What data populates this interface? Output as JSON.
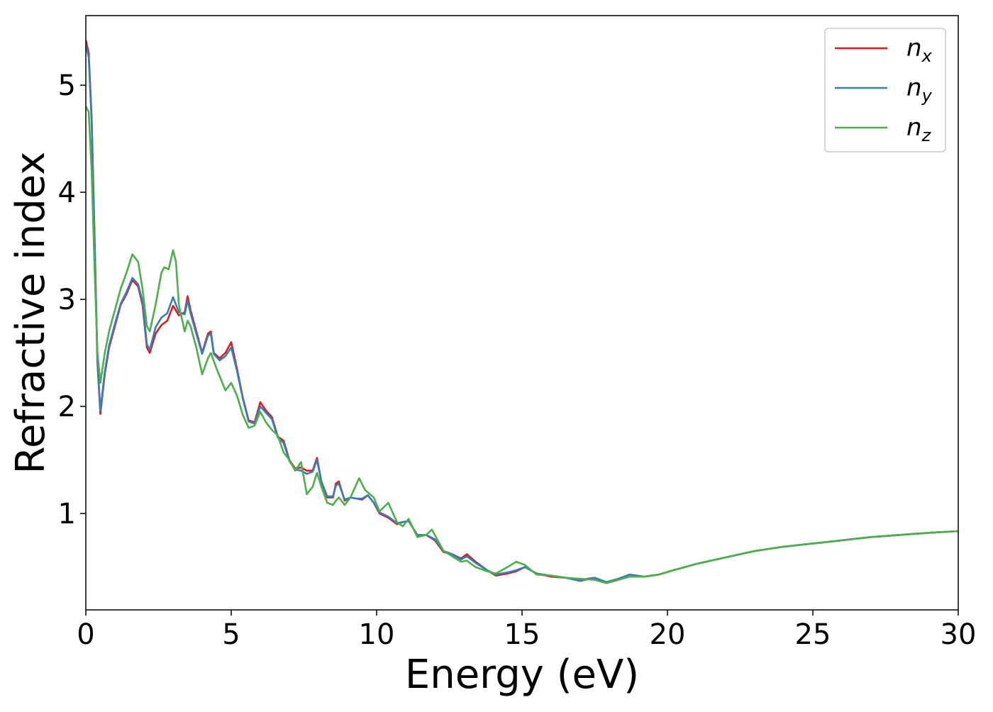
{
  "chart_data": {
    "type": "line",
    "title": "",
    "xlabel": "Energy (eV)",
    "ylabel": "Refractive index",
    "xlim": [
      0,
      30
    ],
    "ylim": [
      0.1,
      5.65
    ],
    "xticks": [
      0,
      5,
      10,
      15,
      20,
      25,
      30
    ],
    "yticks": [
      1,
      2,
      3,
      4,
      5
    ],
    "grid": false,
    "legend_position": "top-right",
    "series": [
      {
        "name": "n_x",
        "label_base": "n",
        "label_sub": "x",
        "color": "#e41a1c",
        "points": [
          [
            0,
            5.42
          ],
          [
            0.1,
            5.3
          ],
          [
            0.2,
            4.7
          ],
          [
            0.3,
            3.6
          ],
          [
            0.4,
            2.4
          ],
          [
            0.5,
            1.93
          ],
          [
            0.65,
            2.3
          ],
          [
            0.8,
            2.55
          ],
          [
            1,
            2.75
          ],
          [
            1.2,
            2.95
          ],
          [
            1.4,
            3.05
          ],
          [
            1.6,
            3.18
          ],
          [
            1.8,
            3.12
          ],
          [
            1.95,
            2.95
          ],
          [
            2.1,
            2.55
          ],
          [
            2.2,
            2.5
          ],
          [
            2.4,
            2.68
          ],
          [
            2.6,
            2.76
          ],
          [
            2.8,
            2.8
          ],
          [
            3,
            2.94
          ],
          [
            3.2,
            2.85
          ],
          [
            3.4,
            2.88
          ],
          [
            3.5,
            3.03
          ],
          [
            3.6,
            2.9
          ],
          [
            3.8,
            2.7
          ],
          [
            4,
            2.5
          ],
          [
            4.2,
            2.68
          ],
          [
            4.3,
            2.7
          ],
          [
            4.4,
            2.5
          ],
          [
            4.6,
            2.45
          ],
          [
            4.8,
            2.5
          ],
          [
            5,
            2.6
          ],
          [
            5.2,
            2.35
          ],
          [
            5.4,
            2.08
          ],
          [
            5.6,
            1.87
          ],
          [
            5.8,
            1.85
          ],
          [
            6,
            2.04
          ],
          [
            6.2,
            1.96
          ],
          [
            6.4,
            1.9
          ],
          [
            6.6,
            1.72
          ],
          [
            6.8,
            1.68
          ],
          [
            7,
            1.5
          ],
          [
            7.2,
            1.42
          ],
          [
            7.4,
            1.43
          ],
          [
            7.6,
            1.4
          ],
          [
            7.8,
            1.4
          ],
          [
            7.95,
            1.52
          ],
          [
            8.1,
            1.3
          ],
          [
            8.3,
            1.15
          ],
          [
            8.5,
            1.15
          ],
          [
            8.6,
            1.28
          ],
          [
            8.7,
            1.3
          ],
          [
            8.9,
            1.12
          ],
          [
            9.1,
            1.15
          ],
          [
            9.3,
            1.14
          ],
          [
            9.5,
            1.13
          ],
          [
            9.7,
            1.17
          ],
          [
            9.9,
            1.1
          ],
          [
            10.1,
            1.0
          ],
          [
            10.4,
            0.96
          ],
          [
            10.7,
            0.9
          ],
          [
            10.9,
            0.92
          ],
          [
            11.1,
            0.93
          ],
          [
            11.4,
            0.8
          ],
          [
            11.7,
            0.8
          ],
          [
            12,
            0.75
          ],
          [
            12.3,
            0.64
          ],
          [
            12.6,
            0.62
          ],
          [
            12.9,
            0.58
          ],
          [
            13.1,
            0.62
          ],
          [
            13.4,
            0.55
          ],
          [
            13.8,
            0.47
          ],
          [
            14.1,
            0.42
          ],
          [
            14.5,
            0.44
          ],
          [
            14.8,
            0.46
          ],
          [
            15.1,
            0.5
          ],
          [
            15.5,
            0.44
          ],
          [
            16,
            0.41
          ],
          [
            16.5,
            0.4
          ],
          [
            17,
            0.38
          ],
          [
            17.5,
            0.4
          ],
          [
            17.9,
            0.35
          ],
          [
            18.3,
            0.38
          ],
          [
            18.7,
            0.43
          ],
          [
            19.2,
            0.41
          ],
          [
            19.7,
            0.43
          ],
          [
            20.2,
            0.47
          ],
          [
            21,
            0.53
          ],
          [
            22,
            0.59
          ],
          [
            23,
            0.65
          ],
          [
            24,
            0.69
          ],
          [
            25,
            0.72
          ],
          [
            26,
            0.75
          ],
          [
            27,
            0.78
          ],
          [
            28,
            0.8
          ],
          [
            29,
            0.82
          ],
          [
            30,
            0.835
          ]
        ]
      },
      {
        "name": "n_y",
        "label_base": "n",
        "label_sub": "y",
        "color": "#377eb8",
        "points": [
          [
            0,
            5.38
          ],
          [
            0.1,
            5.26
          ],
          [
            0.2,
            4.66
          ],
          [
            0.3,
            3.57
          ],
          [
            0.4,
            2.42
          ],
          [
            0.5,
            1.96
          ],
          [
            0.65,
            2.32
          ],
          [
            0.8,
            2.57
          ],
          [
            1,
            2.77
          ],
          [
            1.2,
            2.96
          ],
          [
            1.4,
            3.07
          ],
          [
            1.6,
            3.2
          ],
          [
            1.8,
            3.14
          ],
          [
            1.95,
            2.98
          ],
          [
            2.1,
            2.58
          ],
          [
            2.2,
            2.53
          ],
          [
            2.4,
            2.74
          ],
          [
            2.6,
            2.83
          ],
          [
            2.8,
            2.87
          ],
          [
            3,
            3.02
          ],
          [
            3.2,
            2.88
          ],
          [
            3.4,
            2.86
          ],
          [
            3.5,
            2.99
          ],
          [
            3.6,
            2.87
          ],
          [
            3.8,
            2.68
          ],
          [
            4,
            2.49
          ],
          [
            4.2,
            2.66
          ],
          [
            4.3,
            2.68
          ],
          [
            4.4,
            2.49
          ],
          [
            4.6,
            2.43
          ],
          [
            4.8,
            2.47
          ],
          [
            5,
            2.55
          ],
          [
            5.2,
            2.33
          ],
          [
            5.4,
            2.07
          ],
          [
            5.6,
            1.86
          ],
          [
            5.8,
            1.84
          ],
          [
            6,
            2.0
          ],
          [
            6.2,
            1.94
          ],
          [
            6.4,
            1.88
          ],
          [
            6.6,
            1.71
          ],
          [
            6.8,
            1.66
          ],
          [
            7,
            1.49
          ],
          [
            7.2,
            1.41
          ],
          [
            7.4,
            1.4
          ],
          [
            7.6,
            1.37
          ],
          [
            7.8,
            1.39
          ],
          [
            7.95,
            1.5
          ],
          [
            8.1,
            1.3
          ],
          [
            8.3,
            1.16
          ],
          [
            8.5,
            1.16
          ],
          [
            8.6,
            1.26
          ],
          [
            8.7,
            1.28
          ],
          [
            8.9,
            1.13
          ],
          [
            9.1,
            1.15
          ],
          [
            9.3,
            1.14
          ],
          [
            9.5,
            1.14
          ],
          [
            9.7,
            1.17
          ],
          [
            9.9,
            1.1
          ],
          [
            10.1,
            1.01
          ],
          [
            10.4,
            0.97
          ],
          [
            10.7,
            0.91
          ],
          [
            10.9,
            0.92
          ],
          [
            11.1,
            0.93
          ],
          [
            11.4,
            0.8
          ],
          [
            11.7,
            0.8
          ],
          [
            12,
            0.76
          ],
          [
            12.3,
            0.65
          ],
          [
            12.6,
            0.62
          ],
          [
            12.9,
            0.57
          ],
          [
            13.1,
            0.6
          ],
          [
            13.4,
            0.54
          ],
          [
            13.8,
            0.47
          ],
          [
            14.1,
            0.43
          ],
          [
            14.5,
            0.45
          ],
          [
            14.8,
            0.47
          ],
          [
            15.1,
            0.5
          ],
          [
            15.5,
            0.44
          ],
          [
            16,
            0.42
          ],
          [
            16.5,
            0.4
          ],
          [
            17,
            0.37
          ],
          [
            17.5,
            0.4
          ],
          [
            17.9,
            0.36
          ],
          [
            18.3,
            0.39
          ],
          [
            18.7,
            0.43
          ],
          [
            19.2,
            0.41
          ],
          [
            19.7,
            0.43
          ],
          [
            20.2,
            0.47
          ],
          [
            21,
            0.53
          ],
          [
            22,
            0.59
          ],
          [
            23,
            0.65
          ],
          [
            24,
            0.69
          ],
          [
            25,
            0.72
          ],
          [
            26,
            0.75
          ],
          [
            27,
            0.78
          ],
          [
            28,
            0.8
          ],
          [
            29,
            0.82
          ],
          [
            30,
            0.835
          ]
        ]
      },
      {
        "name": "n_z",
        "label_base": "n",
        "label_sub": "z",
        "color": "#4daf4a",
        "points": [
          [
            0,
            4.8
          ],
          [
            0.1,
            4.75
          ],
          [
            0.2,
            4.2
          ],
          [
            0.3,
            3.3
          ],
          [
            0.4,
            2.5
          ],
          [
            0.5,
            2.22
          ],
          [
            0.65,
            2.5
          ],
          [
            0.8,
            2.7
          ],
          [
            1,
            2.9
          ],
          [
            1.2,
            3.1
          ],
          [
            1.4,
            3.25
          ],
          [
            1.6,
            3.42
          ],
          [
            1.8,
            3.35
          ],
          [
            1.95,
            3.1
          ],
          [
            2.1,
            2.75
          ],
          [
            2.2,
            2.7
          ],
          [
            2.4,
            2.95
          ],
          [
            2.6,
            3.25
          ],
          [
            2.7,
            3.3
          ],
          [
            2.85,
            3.28
          ],
          [
            3,
            3.46
          ],
          [
            3.1,
            3.35
          ],
          [
            3.2,
            2.95
          ],
          [
            3.4,
            2.7
          ],
          [
            3.5,
            2.8
          ],
          [
            3.6,
            2.75
          ],
          [
            3.8,
            2.55
          ],
          [
            4,
            2.3
          ],
          [
            4.2,
            2.45
          ],
          [
            4.3,
            2.5
          ],
          [
            4.5,
            2.35
          ],
          [
            4.8,
            2.15
          ],
          [
            5,
            2.22
          ],
          [
            5.2,
            2.1
          ],
          [
            5.4,
            1.92
          ],
          [
            5.6,
            1.8
          ],
          [
            5.8,
            1.82
          ],
          [
            6,
            1.95
          ],
          [
            6.2,
            1.85
          ],
          [
            6.4,
            1.78
          ],
          [
            6.6,
            1.73
          ],
          [
            6.8,
            1.57
          ],
          [
            7,
            1.5
          ],
          [
            7.2,
            1.4
          ],
          [
            7.4,
            1.48
          ],
          [
            7.6,
            1.18
          ],
          [
            7.8,
            1.25
          ],
          [
            7.95,
            1.38
          ],
          [
            8.1,
            1.25
          ],
          [
            8.3,
            1.1
          ],
          [
            8.5,
            1.08
          ],
          [
            8.6,
            1.12
          ],
          [
            8.7,
            1.15
          ],
          [
            8.9,
            1.08
          ],
          [
            9.1,
            1.15
          ],
          [
            9.4,
            1.33
          ],
          [
            9.6,
            1.22
          ],
          [
            9.9,
            1.15
          ],
          [
            10.1,
            1.02
          ],
          [
            10.4,
            1.1
          ],
          [
            10.7,
            0.92
          ],
          [
            10.9,
            0.88
          ],
          [
            11.1,
            0.95
          ],
          [
            11.4,
            0.78
          ],
          [
            11.7,
            0.8
          ],
          [
            11.9,
            0.85
          ],
          [
            12.1,
            0.75
          ],
          [
            12.3,
            0.65
          ],
          [
            12.6,
            0.6
          ],
          [
            12.9,
            0.55
          ],
          [
            13.1,
            0.56
          ],
          [
            13.4,
            0.5
          ],
          [
            13.8,
            0.46
          ],
          [
            14.1,
            0.44
          ],
          [
            14.5,
            0.5
          ],
          [
            14.8,
            0.55
          ],
          [
            15.1,
            0.52
          ],
          [
            15.5,
            0.43
          ],
          [
            16,
            0.42
          ],
          [
            16.5,
            0.4
          ],
          [
            17,
            0.39
          ],
          [
            17.5,
            0.38
          ],
          [
            17.9,
            0.35
          ],
          [
            18.3,
            0.38
          ],
          [
            18.7,
            0.41
          ],
          [
            19.2,
            0.41
          ],
          [
            19.7,
            0.43
          ],
          [
            20.2,
            0.47
          ],
          [
            21,
            0.53
          ],
          [
            22,
            0.59
          ],
          [
            23,
            0.65
          ],
          [
            24,
            0.69
          ],
          [
            25,
            0.72
          ],
          [
            26,
            0.75
          ],
          [
            27,
            0.78
          ],
          [
            28,
            0.8
          ],
          [
            29,
            0.82
          ],
          [
            30,
            0.835
          ]
        ]
      }
    ]
  }
}
